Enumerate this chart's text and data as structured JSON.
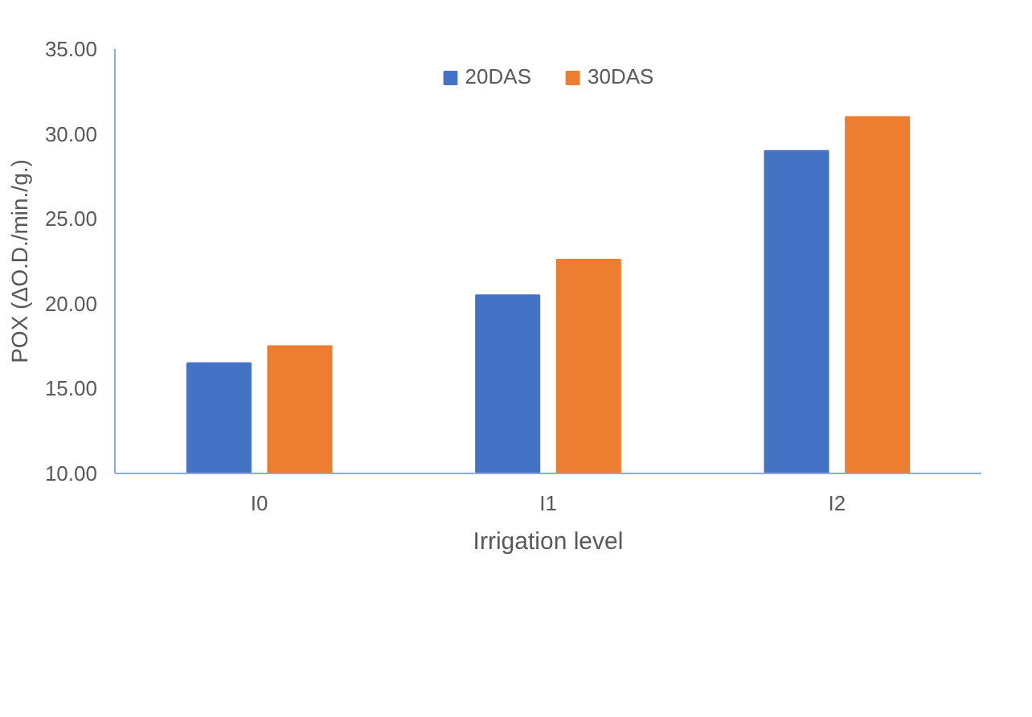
{
  "chart_data": {
    "type": "bar",
    "xlabel": "Irrigation level",
    "ylabel": "POX (ΔO.D./min./g.)",
    "categories": [
      "I0",
      "I1",
      "I2"
    ],
    "series": [
      {
        "name": "20DAS",
        "color": "#4472c4",
        "values": [
          16.5,
          20.5,
          29.0
        ]
      },
      {
        "name": "30DAS",
        "color": "#ed7d31",
        "values": [
          17.5,
          22.6,
          31.0
        ]
      }
    ],
    "ylim": [
      10,
      35
    ],
    "yticks": [
      {
        "value": 10,
        "label": "10.00"
      },
      {
        "value": 15,
        "label": "15.00"
      },
      {
        "value": 20,
        "label": "20.00"
      },
      {
        "value": 25,
        "label": "25.00"
      },
      {
        "value": 30,
        "label": "30.00"
      },
      {
        "value": 35,
        "label": "35.00"
      }
    ],
    "grid": false,
    "legend": "top"
  }
}
